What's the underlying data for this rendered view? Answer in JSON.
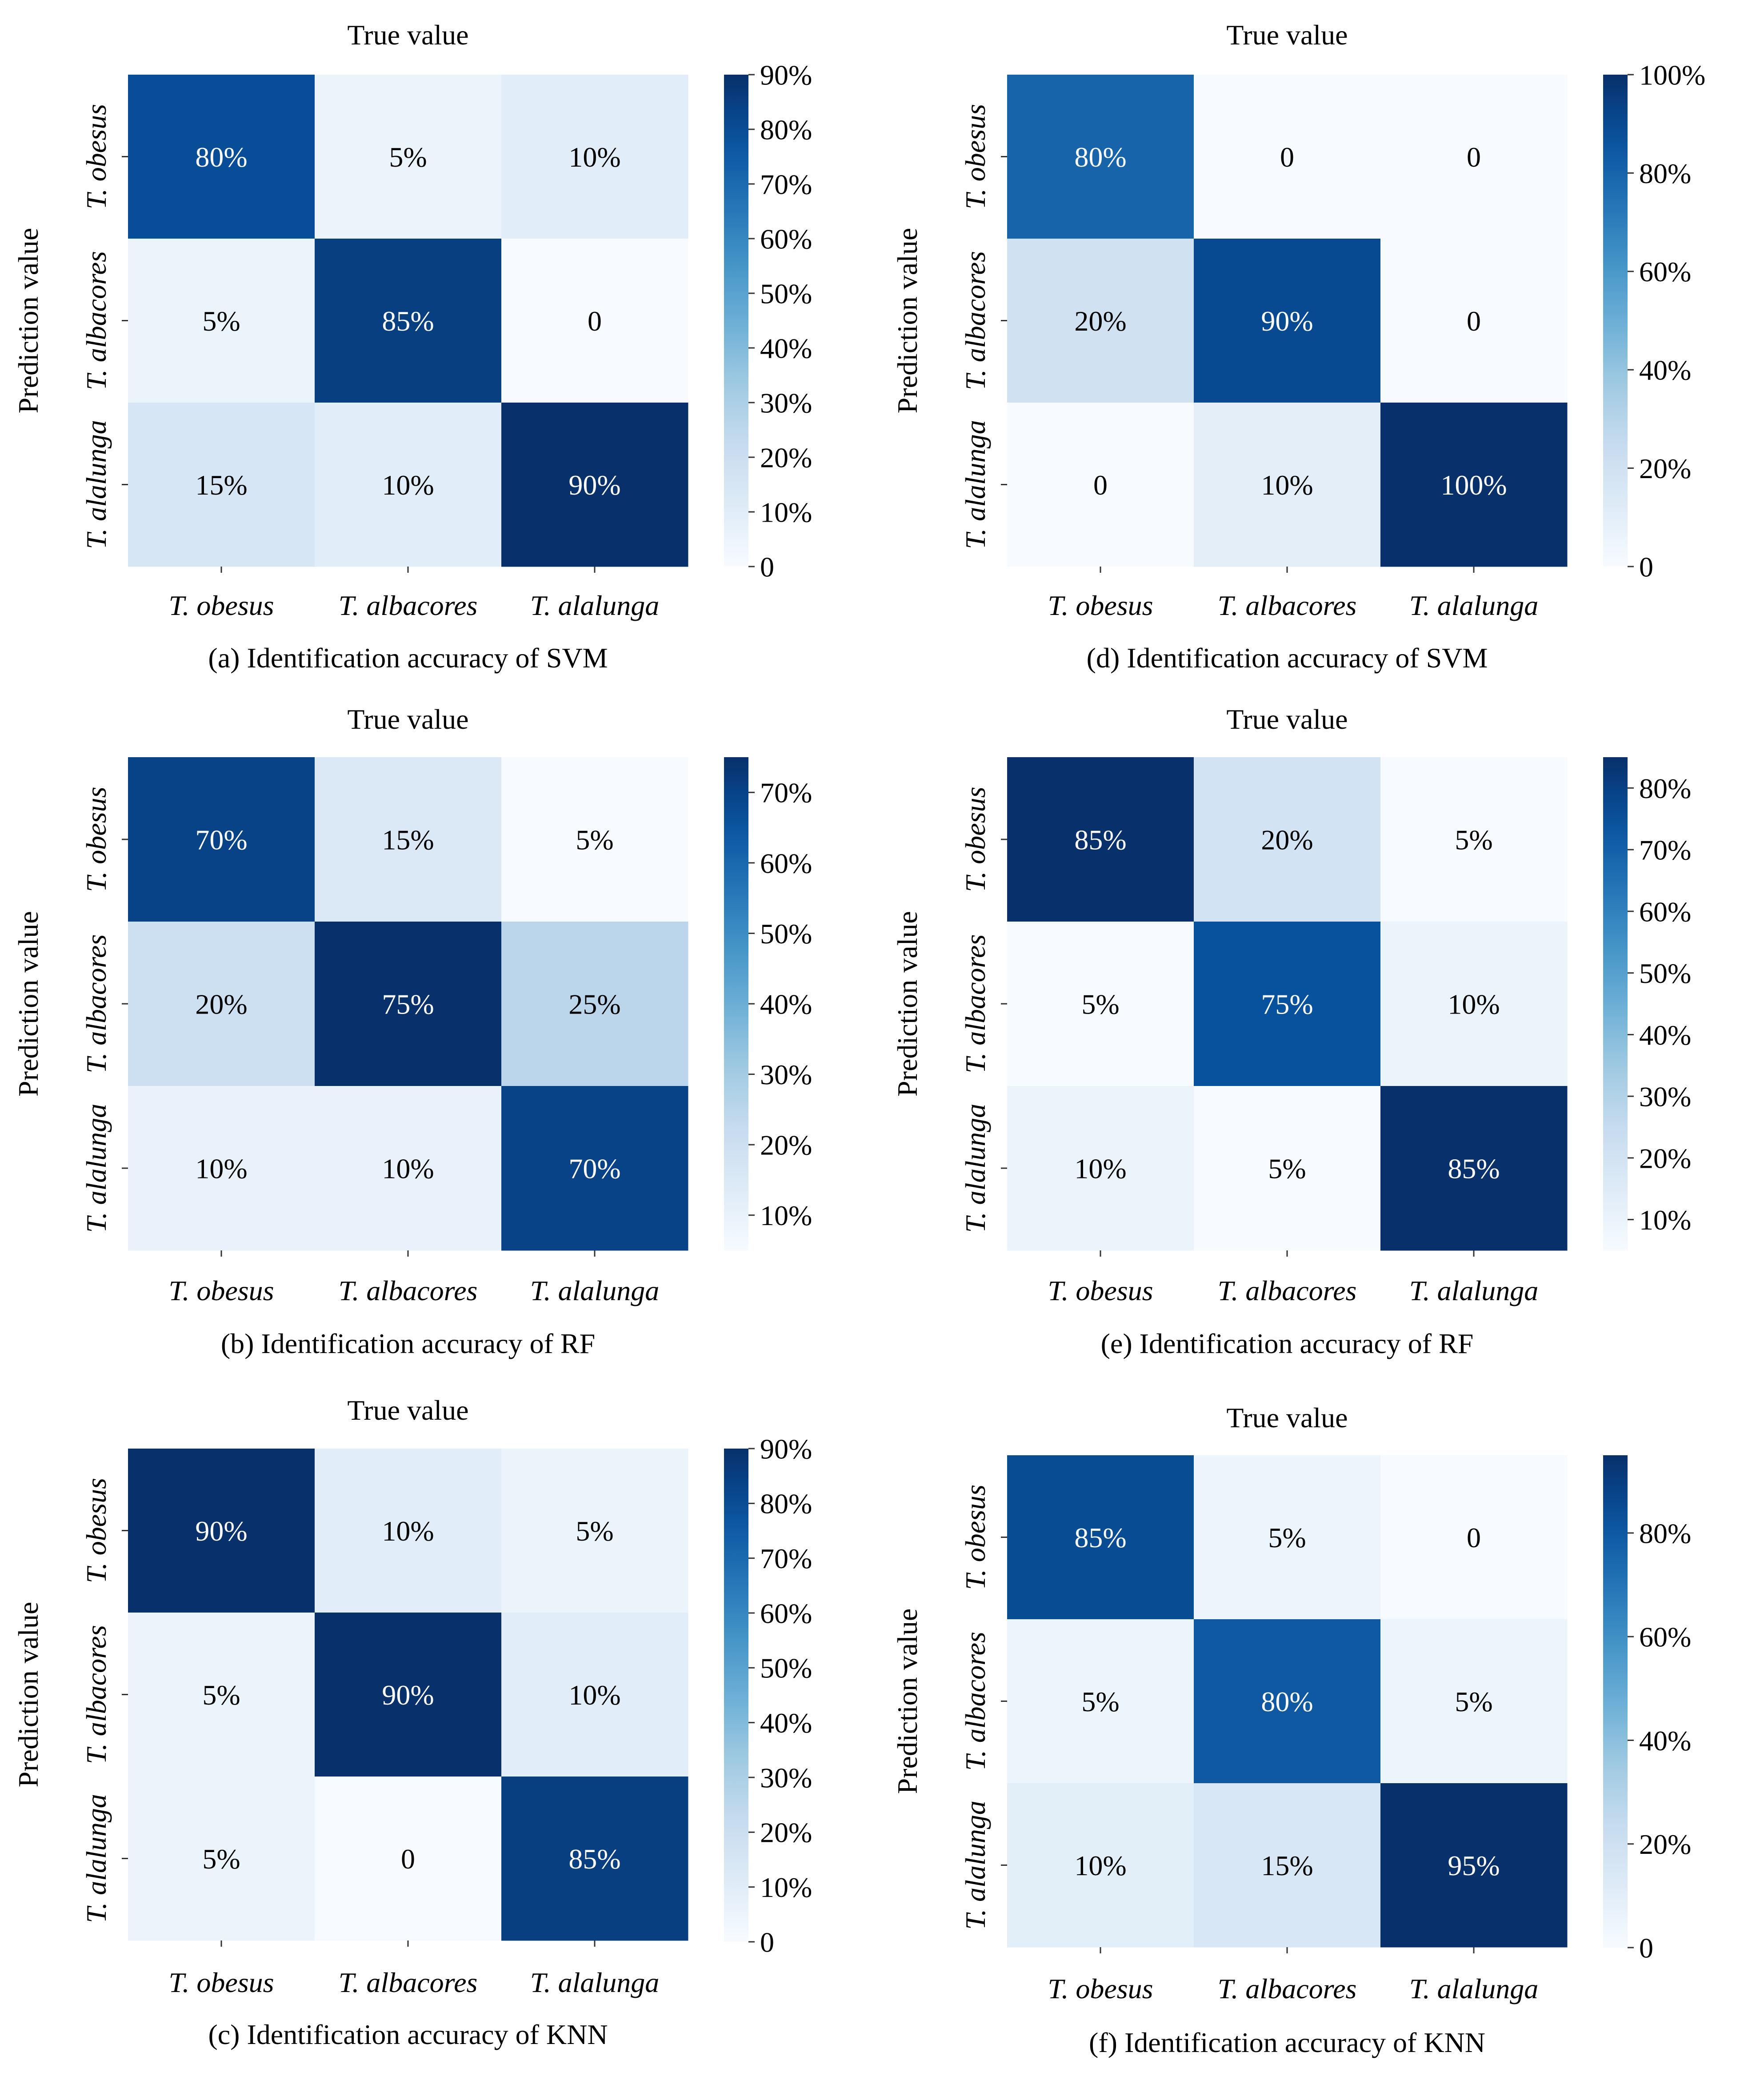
{
  "colors": {
    "low": "#f7fbff",
    "mid": "#6baed6",
    "high": "#08306b",
    "cell_text_light": "#ffffff",
    "cell_text_dark": "#000000",
    "text": "#000000"
  },
  "chart_data": [
    {
      "id": "a",
      "type": "heatmap",
      "title": "True value",
      "caption": "(a) Identification accuracy of SVM",
      "ylabel": "Prediction value",
      "x_categories": [
        "T. obesus",
        "T. albacores",
        "T. alalunga"
      ],
      "y_categories": [
        "T. obesus",
        "T. albacores",
        "T. alalunga"
      ],
      "values": [
        [
          80,
          5,
          10
        ],
        [
          5,
          85,
          0
        ],
        [
          15,
          10,
          90
        ]
      ],
      "labels": [
        [
          "80%",
          "5%",
          "10%"
        ],
        [
          "5%",
          "85%",
          "0"
        ],
        [
          "15%",
          "10%",
          "90%"
        ]
      ],
      "vmin": 0,
      "vmax": 90,
      "colorbar_ticks": [
        0,
        10,
        20,
        30,
        40,
        50,
        60,
        70,
        80,
        90
      ],
      "colorbar_tick_labels": [
        "0",
        "10%",
        "20%",
        "30%",
        "40%",
        "50%",
        "60%",
        "70%",
        "80%",
        "90%"
      ]
    },
    {
      "id": "b",
      "type": "heatmap",
      "title": "True value",
      "caption": "(b) Identification accuracy of RF",
      "ylabel": "Prediction value",
      "x_categories": [
        "T. obesus",
        "T. albacores",
        "T. alalunga"
      ],
      "y_categories": [
        "T. obesus",
        "T. albacores",
        "T. alalunga"
      ],
      "values": [
        [
          70,
          15,
          5
        ],
        [
          20,
          75,
          25
        ],
        [
          10,
          10,
          70
        ]
      ],
      "labels": [
        [
          "70%",
          "15%",
          "5%"
        ],
        [
          "20%",
          "75%",
          "25%"
        ],
        [
          "10%",
          "10%",
          "70%"
        ]
      ],
      "vmin": 5,
      "vmax": 75,
      "colorbar_ticks": [
        10,
        20,
        30,
        40,
        50,
        60,
        70
      ],
      "colorbar_tick_labels": [
        "10%",
        "20%",
        "30%",
        "40%",
        "50%",
        "60%",
        "70%"
      ]
    },
    {
      "id": "c",
      "type": "heatmap",
      "title": "True value",
      "caption": "(c) Identification accuracy of KNN",
      "ylabel": "Prediction value",
      "x_categories": [
        "T. obesus",
        "T. albacores",
        "T. alalunga"
      ],
      "y_categories": [
        "T. obesus",
        "T. albacores",
        "T. alalunga"
      ],
      "values": [
        [
          90,
          10,
          5
        ],
        [
          5,
          90,
          10
        ],
        [
          5,
          0,
          85
        ]
      ],
      "labels": [
        [
          "90%",
          "10%",
          "5%"
        ],
        [
          "5%",
          "90%",
          "10%"
        ],
        [
          "5%",
          "0",
          "85%"
        ]
      ],
      "vmin": 0,
      "vmax": 90,
      "colorbar_ticks": [
        0,
        10,
        20,
        30,
        40,
        50,
        60,
        70,
        80,
        90
      ],
      "colorbar_tick_labels": [
        "0",
        "10%",
        "20%",
        "30%",
        "40%",
        "50%",
        "60%",
        "70%",
        "80%",
        "90%"
      ]
    },
    {
      "id": "d",
      "type": "heatmap",
      "title": "True value",
      "caption": "(d) Identification accuracy of SVM",
      "ylabel": "Prediction value",
      "x_categories": [
        "T. obesus",
        "T. albacores",
        "T. alalunga"
      ],
      "y_categories": [
        "T. obesus",
        "T. albacores",
        "T. alalunga"
      ],
      "values": [
        [
          80,
          0,
          0
        ],
        [
          20,
          90,
          0
        ],
        [
          0,
          10,
          100
        ]
      ],
      "labels": [
        [
          "80%",
          "0",
          "0"
        ],
        [
          "20%",
          "90%",
          "0"
        ],
        [
          "0",
          "10%",
          "100%"
        ]
      ],
      "vmin": 0,
      "vmax": 100,
      "colorbar_ticks": [
        0,
        20,
        40,
        60,
        80,
        100
      ],
      "colorbar_tick_labels": [
        "0",
        "20%",
        "40%",
        "60%",
        "80%",
        "100%"
      ]
    },
    {
      "id": "e",
      "type": "heatmap",
      "title": "True value",
      "caption": "(e) Identification accuracy of RF",
      "ylabel": "Prediction value",
      "x_categories": [
        "T. obesus",
        "T. albacores",
        "T. alalunga"
      ],
      "y_categories": [
        "T. obesus",
        "T. albacores",
        "T. alalunga"
      ],
      "values": [
        [
          85,
          20,
          5
        ],
        [
          5,
          75,
          10
        ],
        [
          10,
          5,
          85
        ]
      ],
      "labels": [
        [
          "85%",
          "20%",
          "5%"
        ],
        [
          "5%",
          "75%",
          "10%"
        ],
        [
          "10%",
          "5%",
          "85%"
        ]
      ],
      "vmin": 5,
      "vmax": 85,
      "colorbar_ticks": [
        10,
        20,
        30,
        40,
        50,
        60,
        70,
        80
      ],
      "colorbar_tick_labels": [
        "10%",
        "20%",
        "30%",
        "40%",
        "50%",
        "60%",
        "70%",
        "80%"
      ]
    },
    {
      "id": "f",
      "type": "heatmap",
      "title": "True value",
      "caption": "(f) Identification accuracy of KNN",
      "ylabel": "Prediction value",
      "x_categories": [
        "T. obesus",
        "T. albacores",
        "T. alalunga"
      ],
      "y_categories": [
        "T. obesus",
        "T. albacores",
        "T. alalunga"
      ],
      "values": [
        [
          85,
          5,
          0
        ],
        [
          5,
          80,
          5
        ],
        [
          10,
          15,
          95
        ]
      ],
      "labels": [
        [
          "85%",
          "5%",
          "0"
        ],
        [
          "5%",
          "80%",
          "5%"
        ],
        [
          "10%",
          "15%",
          "95%"
        ]
      ],
      "vmin": 0,
      "vmax": 95,
      "colorbar_ticks": [
        0,
        20,
        40,
        60,
        80
      ],
      "colorbar_tick_labels": [
        "0",
        "20%",
        "40%",
        "60%",
        "80%"
      ]
    }
  ]
}
